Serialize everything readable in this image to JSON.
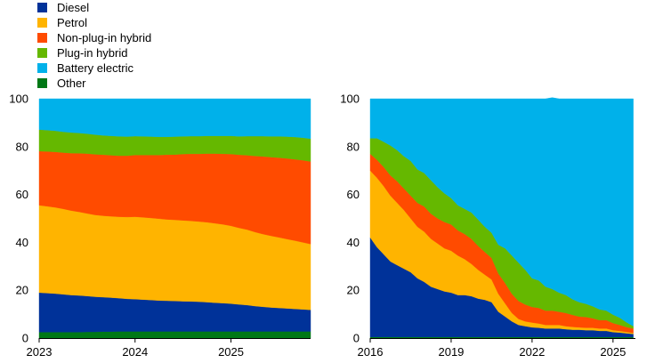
{
  "legend": [
    {
      "name": "Diesel",
      "color": "#003299"
    },
    {
      "name": "Petrol",
      "color": "#FFB400"
    },
    {
      "name": "Non-plug-in hybrid",
      "color": "#FF4B00"
    },
    {
      "name": "Plug-in hybrid",
      "color": "#65B800"
    },
    {
      "name": "Battery electric",
      "color": "#00B1EA"
    },
    {
      "name": "Other",
      "color": "#007816"
    }
  ],
  "chart_data": [
    {
      "type": "area",
      "stacked": true,
      "x": [
        2023.0,
        2023.08,
        2023.17,
        2023.25,
        2023.33,
        2023.42,
        2023.5,
        2023.58,
        2023.67,
        2023.75,
        2023.83,
        2023.92,
        2024.0,
        2024.08,
        2024.17,
        2024.25,
        2024.33,
        2024.42,
        2024.5,
        2024.58,
        2024.67,
        2024.75,
        2024.83,
        2024.92,
        2025.0,
        2025.08,
        2025.17,
        2025.25,
        2025.33,
        2025.42,
        2025.5,
        2025.58,
        2025.67,
        2025.75,
        2025.83
      ],
      "xticks": [
        {
          "value": 2023,
          "label": "2023"
        },
        {
          "value": 2024,
          "label": "2024"
        },
        {
          "value": 2025,
          "label": "2025"
        }
      ],
      "xlim": [
        2023.0,
        2025.83
      ],
      "ylim": [
        0,
        100
      ],
      "yticks": [
        0,
        20,
        40,
        60,
        80,
        100
      ],
      "series": [
        {
          "name": "Other",
          "color": "#007816",
          "values": [
            2.5,
            2.5,
            2.5,
            2.5,
            2.5,
            2.5,
            2.6,
            2.6,
            2.7,
            2.7,
            2.8,
            2.8,
            2.8,
            2.8,
            2.8,
            2.8,
            2.8,
            2.8,
            2.8,
            2.8,
            2.8,
            2.8,
            2.8,
            2.8,
            2.8,
            2.8,
            2.8,
            2.8,
            2.8,
            2.8,
            2.8,
            2.8,
            2.8,
            2.8,
            2.8
          ]
        },
        {
          "name": "Diesel",
          "color": "#003299",
          "values": [
            16.5,
            16.3,
            16.1,
            15.8,
            15.5,
            15.3,
            15.0,
            14.7,
            14.4,
            14.2,
            13.9,
            13.6,
            13.5,
            13.3,
            13.1,
            12.9,
            12.8,
            12.7,
            12.6,
            12.5,
            12.4,
            12.2,
            12.0,
            11.8,
            11.6,
            11.3,
            11.0,
            10.6,
            10.3,
            10.0,
            9.8,
            9.6,
            9.4,
            9.2,
            9.0
          ]
        },
        {
          "name": "Petrol",
          "color": "#FFB400",
          "values": [
            36.5,
            36.3,
            36.0,
            35.7,
            35.3,
            34.9,
            34.5,
            34.2,
            34.0,
            34.0,
            34.0,
            34.2,
            34.4,
            34.4,
            34.3,
            34.2,
            34.0,
            33.9,
            33.8,
            33.7,
            33.5,
            33.4,
            33.2,
            32.9,
            32.5,
            32.0,
            31.5,
            30.9,
            30.4,
            29.9,
            29.5,
            29.0,
            28.5,
            28.0,
            27.5
          ]
        },
        {
          "name": "Non-plug-in hybrid",
          "color": "#FF4B00",
          "values": [
            22.6,
            22.9,
            23.2,
            23.5,
            24.0,
            24.5,
            25.0,
            25.3,
            25.5,
            25.5,
            25.5,
            25.6,
            25.8,
            26.0,
            26.3,
            26.6,
            27.0,
            27.3,
            27.7,
            28.0,
            28.3,
            28.7,
            29.1,
            29.5,
            30.0,
            30.5,
            31.1,
            31.8,
            32.4,
            32.9,
            33.3,
            33.7,
            34.0,
            34.3,
            34.5
          ]
        },
        {
          "name": "Plug-in hybrid",
          "color": "#65B800",
          "values": [
            9.0,
            8.9,
            8.8,
            8.7,
            8.6,
            8.5,
            8.3,
            8.2,
            8.1,
            8.1,
            8.1,
            8.0,
            7.9,
            7.8,
            7.7,
            7.6,
            7.5,
            7.5,
            7.4,
            7.4,
            7.4,
            7.4,
            7.4,
            7.5,
            7.6,
            7.7,
            8.0,
            8.3,
            8.5,
            8.7,
            8.9,
            9.1,
            9.3,
            9.4,
            9.5
          ]
        },
        {
          "name": "Battery electric",
          "color": "#00B1EA",
          "values": [
            12.9,
            13.1,
            13.4,
            13.8,
            14.1,
            14.3,
            14.6,
            15.0,
            15.3,
            15.5,
            15.7,
            15.8,
            15.6,
            15.7,
            15.8,
            15.9,
            15.9,
            15.8,
            15.7,
            15.6,
            15.6,
            15.5,
            15.5,
            15.5,
            15.5,
            15.7,
            15.6,
            15.6,
            15.6,
            15.7,
            15.7,
            15.8,
            16.0,
            16.3,
            16.7
          ]
        }
      ]
    },
    {
      "type": "area",
      "stacked": true,
      "x": [
        2016.0,
        2016.25,
        2016.5,
        2016.75,
        2017.0,
        2017.25,
        2017.5,
        2017.75,
        2018.0,
        2018.25,
        2018.5,
        2018.75,
        2019.0,
        2019.25,
        2019.5,
        2019.75,
        2020.0,
        2020.25,
        2020.5,
        2020.75,
        2021.0,
        2021.25,
        2021.5,
        2021.75,
        2022.0,
        2022.25,
        2022.5,
        2022.75,
        2023.0,
        2023.25,
        2023.5,
        2023.75,
        2024.0,
        2024.25,
        2024.5,
        2024.75,
        2025.0,
        2025.25,
        2025.5,
        2025.75
      ],
      "xticks": [
        {
          "value": 2016,
          "label": "2016"
        },
        {
          "value": 2019,
          "label": "2019"
        },
        {
          "value": 2022,
          "label": "2022"
        },
        {
          "value": 2025,
          "label": "2025"
        }
      ],
      "xlim": [
        2016.0,
        2025.83
      ],
      "ylim": [
        0,
        100
      ],
      "yticks": [
        0,
        20,
        40,
        60,
        80,
        100
      ],
      "series": [
        {
          "name": "Other",
          "color": "#007816",
          "values": [
            0.5,
            0.5,
            0.5,
            0.5,
            0.5,
            0.5,
            0.5,
            0.5,
            0.5,
            0.5,
            0.5,
            0.5,
            0.5,
            0.5,
            0.5,
            0.5,
            0.5,
            0.5,
            0.5,
            0.5,
            0.5,
            0.5,
            0.5,
            0.5,
            0.5,
            0.5,
            0.5,
            0.5,
            0.5,
            0.5,
            0.5,
            0.5,
            0.5,
            0.5,
            0.5,
            0.5,
            0.5,
            0.5,
            0.5,
            0.5
          ]
        },
        {
          "name": "Diesel",
          "color": "#003299",
          "values": [
            41.5,
            37.5,
            34.5,
            31.5,
            30.0,
            28.5,
            27.0,
            24.5,
            23.0,
            21.0,
            20.0,
            19.0,
            18.5,
            17.5,
            17.5,
            17.0,
            16.0,
            15.5,
            14.5,
            10.5,
            8.5,
            6.5,
            5.0,
            4.5,
            4.0,
            3.8,
            3.5,
            3.5,
            3.5,
            3.2,
            3.0,
            3.0,
            2.8,
            2.8,
            2.5,
            2.5,
            2.0,
            1.8,
            1.5,
            1.2
          ]
        },
        {
          "name": "Petrol",
          "color": "#FFB400",
          "values": [
            28.0,
            29.0,
            28.5,
            27.5,
            26.0,
            24.5,
            22.5,
            21.5,
            21.0,
            20.0,
            19.0,
            18.0,
            17.5,
            16.5,
            15.0,
            13.5,
            12.0,
            10.5,
            9.5,
            7.5,
            5.5,
            3.5,
            2.5,
            2.0,
            2.0,
            1.8,
            1.5,
            1.5,
            1.5,
            1.3,
            1.2,
            1.0,
            1.0,
            1.0,
            1.0,
            1.0,
            0.8,
            0.7,
            0.6,
            0.5
          ]
        },
        {
          "name": "Non-plug-in hybrid",
          "color": "#FF4B00",
          "values": [
            7.0,
            7.5,
            8.0,
            8.5,
            9.0,
            9.0,
            9.5,
            10.0,
            10.5,
            10.5,
            10.5,
            11.0,
            11.0,
            10.5,
            10.5,
            10.5,
            10.0,
            9.5,
            9.0,
            8.5,
            8.5,
            8.0,
            7.5,
            7.0,
            6.5,
            6.5,
            6.0,
            6.0,
            5.5,
            5.5,
            5.0,
            4.5,
            4.5,
            4.0,
            3.5,
            3.5,
            3.0,
            2.5,
            2.0,
            1.8
          ]
        },
        {
          "name": "Plug-in hybrid",
          "color": "#65B800",
          "values": [
            6.5,
            9.0,
            10.5,
            12.5,
            13.0,
            13.5,
            14.5,
            14.0,
            14.0,
            14.0,
            13.0,
            12.0,
            11.0,
            10.5,
            10.5,
            11.0,
            11.0,
            10.5,
            10.5,
            12.0,
            14.5,
            16.0,
            16.0,
            14.5,
            12.0,
            11.5,
            10.0,
            9.0,
            8.0,
            7.5,
            6.5,
            6.0,
            5.5,
            5.0,
            4.5,
            4.0,
            3.5,
            3.0,
            2.0,
            1.0
          ]
        },
        {
          "name": "Battery electric",
          "color": "#00B1EA",
          "values": [
            16.5,
            16.5,
            18.0,
            19.5,
            21.5,
            24.0,
            26.0,
            29.5,
            31.0,
            34.0,
            37.0,
            39.5,
            41.5,
            44.5,
            46.0,
            47.5,
            50.5,
            53.5,
            56.0,
            61.0,
            62.5,
            65.5,
            68.5,
            71.5,
            75.0,
            75.9,
            78.5,
            80.0,
            81.0,
            82.0,
            83.8,
            85.0,
            85.7,
            86.7,
            88.0,
            88.5,
            90.2,
            91.5,
            93.4,
            95.0
          ]
        }
      ]
    }
  ]
}
